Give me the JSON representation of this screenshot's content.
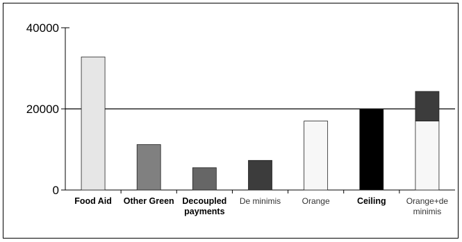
{
  "chart_data": {
    "type": "bar",
    "title": "",
    "xlabel": "",
    "ylabel": "",
    "ylim": [
      0,
      40000
    ],
    "yticks": [
      "0",
      "20000",
      "40000"
    ],
    "ytick_values": [
      0,
      20000,
      40000
    ],
    "reference_line": 20000,
    "categories": [
      {
        "label_lines": [
          "Food Aid"
        ],
        "bold": true
      },
      {
        "label_lines": [
          "Other Green"
        ],
        "bold": true
      },
      {
        "label_lines": [
          "Decoupled",
          "payments"
        ],
        "bold": true
      },
      {
        "label_lines": [
          "De minimis"
        ],
        "bold": false
      },
      {
        "label_lines": [
          "Orange"
        ],
        "bold": false
      },
      {
        "label_lines": [
          "Ceiling"
        ],
        "bold": true
      },
      {
        "label_lines": [
          "Orange+de",
          "minimis"
        ],
        "bold": false
      }
    ],
    "bars": [
      {
        "segments": [
          {
            "value": 32800,
            "color": "#e6e6e6"
          }
        ]
      },
      {
        "segments": [
          {
            "value": 11200,
            "color": "#808080"
          }
        ]
      },
      {
        "segments": [
          {
            "value": 5500,
            "color": "#666666"
          }
        ]
      },
      {
        "segments": [
          {
            "value": 7300,
            "color": "#3c3c3c"
          }
        ]
      },
      {
        "segments": [
          {
            "value": 17000,
            "color": "#f7f7f7"
          }
        ]
      },
      {
        "segments": [
          {
            "value": 20000,
            "color": "#000000"
          }
        ]
      },
      {
        "segments": [
          {
            "value": 17000,
            "color": "#f7f7f7"
          },
          {
            "value": 7300,
            "color": "#3c3c3c"
          }
        ]
      }
    ],
    "grid": false,
    "legend": "none"
  }
}
